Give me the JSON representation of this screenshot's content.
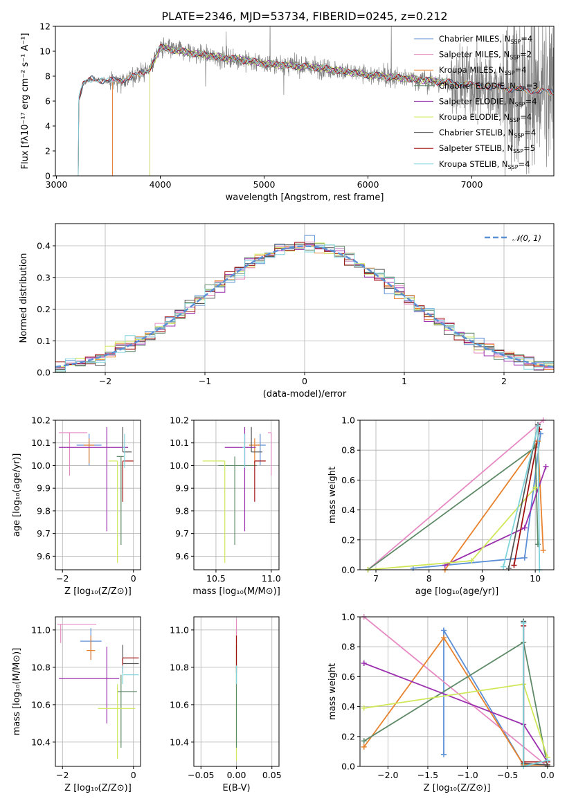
{
  "colors": {
    "Chabrier MILES": "#5b8fd6",
    "Salpeter MILES": "#e68ac3",
    "Kroupa MILES": "#e8822d",
    "Chabrier ELODIE": "#5f8a68",
    "Salpeter ELODIE": "#9b2fae",
    "Kroupa ELODIE": "#cfe85a",
    "Chabrier STELIB": "#555555",
    "Salpeter STELIB": "#a01010",
    "Kroupa STELIB": "#7fd4dc",
    "observed": "#808080",
    "normal": "#5b8fd6"
  },
  "chart_data": [
    {
      "id": "spectrum",
      "type": "line",
      "title": "PLATE=2346, MJD=53734, FIBERID=0245, z=0.212",
      "xlabel": "wavelength [Angstrom, rest frame]",
      "ylabel": "Flux [fλ10⁻¹⁷ erg cm⁻² s⁻¹ A⁻¹]",
      "xlim": [
        2990,
        7790
      ],
      "ylim": [
        0,
        12
      ],
      "xticks": [
        "3000",
        "4000",
        "5000",
        "6000",
        "7000"
      ],
      "yticks": [
        "0",
        "2",
        "4",
        "6",
        "8",
        "10",
        "12"
      ],
      "legend_position": "top-right",
      "legend": [
        {
          "name": "Chabrier MILES",
          "ssp": "4"
        },
        {
          "name": "Salpeter MILES",
          "ssp": "2"
        },
        {
          "name": "Kroupa MILES",
          "ssp": "4"
        },
        {
          "name": "Chabrier ELODIE",
          "ssp": "3"
        },
        {
          "name": "Salpeter ELODIE",
          "ssp": "4"
        },
        {
          "name": "Kroupa ELODIE",
          "ssp": "4"
        },
        {
          "name": "Chabrier STELIB",
          "ssp": "4"
        },
        {
          "name": "Salpeter STELIB",
          "ssp": "5"
        },
        {
          "name": "Kroupa STELIB",
          "ssp": "4"
        }
      ],
      "continuum": [
        [
          3210,
          0
        ],
        [
          3215,
          6.2
        ],
        [
          3260,
          7.4
        ],
        [
          3350,
          7.8
        ],
        [
          3500,
          7.6
        ],
        [
          3700,
          7.8
        ],
        [
          3900,
          8.6
        ],
        [
          4000,
          10.3
        ],
        [
          4200,
          10.0
        ],
        [
          4500,
          9.6
        ],
        [
          4800,
          9.3
        ],
        [
          5000,
          9.0
        ],
        [
          5500,
          8.7
        ],
        [
          6000,
          8.1
        ],
        [
          6500,
          7.7
        ],
        [
          7000,
          7.3
        ],
        [
          7500,
          6.9
        ],
        [
          7790,
          6.7
        ]
      ],
      "model_starts": {
        "Salpeter MILES": 3540,
        "Kroupa ELODIE": 3900,
        "Kroupa MILES": 3540,
        "Chabrier MILES": 3210,
        "Chabrier STELIB": 3210,
        "Salpeter STELIB": 3210,
        "Kroupa STELIB": 3210,
        "Chabrier ELODIE": 3900,
        "Salpeter ELODIE": 3900
      },
      "model_ends": {
        "Salpeter ELODIE": 6800,
        "Chabrier ELODIE": 6800,
        "Kroupa ELODIE": 6800
      }
    },
    {
      "id": "residuals",
      "type": "histogram",
      "xlabel": "(data-model)/error",
      "ylabel": "Normed distribution",
      "xlim": [
        -2.5,
        2.5
      ],
      "ylim": [
        0,
        0.47
      ],
      "xticks": [
        "−2",
        "−1",
        "0",
        "1",
        "2"
      ],
      "yticks": [
        "0.0",
        "0.1",
        "0.2",
        "0.3",
        "0.4"
      ],
      "normal_label": "𝒩(0, 1)",
      "bin_width": 0.1
    },
    {
      "id": "age_vs_Z",
      "type": "scatter",
      "xlabel": "Z [log₁₀(Z/Z⊙)]",
      "ylabel": "age  [log₁₀(age/yr)]",
      "xlim": [
        -2.2,
        0.2
      ],
      "ylim": [
        9.54,
        10.2
      ],
      "xticks": [
        "−2",
        "0"
      ],
      "xtick_values": [
        -2,
        0
      ],
      "yticks": [
        "9.6",
        "9.7",
        "9.8",
        "9.9",
        "10.0",
        "10.1",
        "10.2"
      ],
      "points": [
        {
          "m": "Chabrier MILES",
          "x": -1.25,
          "y": 10.09,
          "xerr": [
            0.35,
            0.35
          ],
          "yerr": [
            0.09,
            0.05
          ]
        },
        {
          "m": "Salpeter MILES",
          "x": -1.8,
          "y": 10.145,
          "xerr": [
            0.3,
            0.5
          ],
          "yerr": [
            0.19,
            0.0
          ]
        },
        {
          "m": "Kroupa MILES",
          "x": -1.25,
          "y": 10.09,
          "xerr": [
            0.15,
            0.15
          ],
          "yerr": [
            0.08,
            0.03
          ]
        },
        {
          "m": "Chabrier ELODIE",
          "x": -0.35,
          "y": 10.04,
          "xerr": [
            0.12,
            0.08
          ],
          "yerr": [
            0.39,
            0.0
          ]
        },
        {
          "m": "Salpeter ELODIE",
          "x": -0.75,
          "y": 10.08,
          "xerr": [
            1.35,
            0.6
          ],
          "yerr": [
            0.37,
            0.09
          ]
        },
        {
          "m": "Kroupa ELODIE",
          "x": -0.45,
          "y": 10.02,
          "xerr": [
            0.25,
            0.0
          ],
          "yerr": [
            0.45,
            0.0
          ]
        },
        {
          "m": "Chabrier STELIB",
          "x": -0.3,
          "y": 10.06,
          "xerr": [
            0.0,
            0.25
          ],
          "yerr": [
            0.0,
            0.11
          ]
        },
        {
          "m": "Salpeter STELIB",
          "x": -0.3,
          "y": 10.02,
          "xerr": [
            0.0,
            0.3
          ],
          "yerr": [
            0.18,
            0.0
          ]
        },
        {
          "m": "Kroupa STELIB",
          "x": -0.25,
          "y": 10.08,
          "xerr": [
            0.05,
            0.0
          ],
          "yerr": [
            0.09,
            0.06
          ]
        }
      ]
    },
    {
      "id": "age_vs_mass",
      "type": "scatter",
      "xlabel": "mass [log₁₀(M/M⊙)]",
      "ylabel": "",
      "xlim": [
        10.3,
        11.07
      ],
      "ylim": [
        9.54,
        10.2
      ],
      "xticks": [
        "10.5",
        "11.0"
      ],
      "xtick_values": [
        10.5,
        11.0
      ],
      "yticks": [
        "9.6",
        "9.7",
        "9.8",
        "9.9",
        "10.0",
        "10.1",
        "10.2"
      ],
      "points": [
        {
          "m": "Chabrier MILES",
          "x": 10.9,
          "y": 10.09,
          "xerr": [
            0.05,
            0.05
          ],
          "yerr": [
            0.09,
            0.05
          ]
        },
        {
          "m": "Salpeter MILES",
          "x": 11.0,
          "y": 10.145,
          "xerr": [
            0.03,
            0.0
          ],
          "yerr": [
            0.19,
            0.0
          ]
        },
        {
          "m": "Kroupa MILES",
          "x": 10.85,
          "y": 10.09,
          "xerr": [
            0.05,
            0.05
          ],
          "yerr": [
            0.08,
            0.03
          ]
        },
        {
          "m": "Chabrier ELODIE",
          "x": 10.67,
          "y": 10.0,
          "xerr": [
            0.15,
            0.2
          ],
          "yerr": [
            0.35,
            0.04
          ]
        },
        {
          "m": "Salpeter ELODIE",
          "x": 10.76,
          "y": 10.08,
          "xerr": [
            0.18,
            0.1
          ],
          "yerr": [
            0.37,
            0.09
          ]
        },
        {
          "m": "Kroupa ELODIE",
          "x": 10.58,
          "y": 10.02,
          "xerr": [
            0.2,
            0.0
          ],
          "yerr": [
            0.45,
            0.0
          ]
        },
        {
          "m": "Chabrier STELIB",
          "x": 10.82,
          "y": 10.06,
          "xerr": [
            0.0,
            0.1
          ],
          "yerr": [
            0.0,
            0.11
          ]
        },
        {
          "m": "Salpeter STELIB",
          "x": 10.85,
          "y": 10.02,
          "xerr": [
            0.0,
            0.1
          ],
          "yerr": [
            0.18,
            0.0
          ]
        },
        {
          "m": "Kroupa STELIB",
          "x": 10.76,
          "y": 10.08,
          "xerr": [
            0.02,
            0.0
          ],
          "yerr": [
            0.09,
            0.06
          ]
        }
      ]
    },
    {
      "id": "weight_vs_age",
      "type": "line",
      "xlabel": "age  [log₁₀(age/yr)]",
      "ylabel": "mass weight",
      "xlim": [
        6.7,
        10.35
      ],
      "ylim": [
        0,
        1
      ],
      "xticks": [
        "7",
        "8",
        "9",
        "10"
      ],
      "xtick_values": [
        7,
        8,
        9,
        10
      ],
      "yticks": [
        "0.0",
        "0.2",
        "0.4",
        "0.6",
        "0.8",
        "1.0"
      ],
      "series": [
        {
          "m": "Chabrier MILES",
          "x": [
            7.7,
            9.8,
            10.1
          ],
          "y": [
            0.01,
            0.08,
            0.91
          ]
        },
        {
          "m": "Salpeter MILES",
          "x": [
            6.85,
            10.15
          ],
          "y": [
            0.0,
            1.0
          ]
        },
        {
          "m": "Kroupa MILES",
          "x": [
            8.3,
            10.05,
            10.15
          ],
          "y": [
            0.0,
            0.86,
            0.13
          ]
        },
        {
          "m": "Chabrier ELODIE",
          "x": [
            6.85,
            10.0,
            10.05
          ],
          "y": [
            0.0,
            0.82,
            0.17
          ]
        },
        {
          "m": "Salpeter ELODIE",
          "x": [
            8.3,
            9.8,
            10.2
          ],
          "y": [
            0.03,
            0.28,
            0.69
          ]
        },
        {
          "m": "Kroupa ELODIE",
          "x": [
            6.85,
            8.8,
            10.0
          ],
          "y": [
            0.0,
            0.06,
            0.55
          ]
        },
        {
          "m": "Chabrier STELIB",
          "x": [
            9.5,
            10.05
          ],
          "y": [
            0.01,
            0.97
          ]
        },
        {
          "m": "Salpeter STELIB",
          "x": [
            9.6,
            10.08
          ],
          "y": [
            0.03,
            0.94
          ]
        },
        {
          "m": "Kroupa STELIB",
          "x": [
            9.4,
            10.05,
            10.08
          ],
          "y": [
            0.02,
            0.96,
            0.0
          ]
        }
      ]
    },
    {
      "id": "mass_vs_Z",
      "type": "scatter",
      "xlabel": "Z [log₁₀(Z/Z⊙)]",
      "ylabel": "mass [log₁₀(M/M⊙)]",
      "xlim": [
        -2.2,
        0.2
      ],
      "ylim": [
        10.27,
        11.07
      ],
      "xticks": [
        "−2",
        "0"
      ],
      "xtick_values": [
        -2,
        0
      ],
      "yticks": [
        "10.4",
        "10.6",
        "10.8",
        "11.0"
      ],
      "points": [
        {
          "m": "Chabrier MILES",
          "x": -1.2,
          "y": 10.94,
          "xerr": [
            0.3,
            0.3
          ],
          "yerr": [
            0.1,
            0.07
          ]
        },
        {
          "m": "Salpeter MILES",
          "x": -2.05,
          "y": 11.03,
          "xerr": [
            0.1,
            1.0
          ],
          "yerr": [
            0.1,
            0.0
          ]
        },
        {
          "m": "Kroupa MILES",
          "x": -1.2,
          "y": 10.89,
          "xerr": [
            0.12,
            0.12
          ],
          "yerr": [
            0.05,
            0.08
          ]
        },
        {
          "m": "Chabrier ELODIE",
          "x": -0.35,
          "y": 10.67,
          "xerr": [
            0.1,
            0.45
          ],
          "yerr": [
            0.3,
            0.09
          ]
        },
        {
          "m": "Salpeter ELODIE",
          "x": -0.75,
          "y": 10.74,
          "xerr": [
            1.35,
            0.35
          ],
          "yerr": [
            0.24,
            0.17
          ]
        },
        {
          "m": "Kroupa ELODIE",
          "x": -0.45,
          "y": 10.58,
          "xerr": [
            0.55,
            0.5
          ],
          "yerr": [
            0.27,
            0.13
          ]
        },
        {
          "m": "Chabrier STELIB",
          "x": -0.3,
          "y": 10.82,
          "xerr": [
            0.0,
            0.45
          ],
          "yerr": [
            0.0,
            0.1
          ]
        },
        {
          "m": "Salpeter STELIB",
          "x": -0.3,
          "y": 10.85,
          "xerr": [
            0.0,
            0.45
          ],
          "yerr": [
            0.08,
            0.0
          ]
        },
        {
          "m": "Kroupa STELIB",
          "x": -0.3,
          "y": 10.76,
          "xerr": [
            0.0,
            0.45
          ],
          "yerr": [
            0.05,
            0.05
          ]
        }
      ]
    },
    {
      "id": "mass_vs_EBV",
      "type": "scatter",
      "xlabel": "E(B-V)",
      "ylabel": "",
      "xlim": [
        -0.06,
        0.06
      ],
      "ylim": [
        10.27,
        11.07
      ],
      "xticks": [
        "−0.05",
        "0.00",
        "0.05"
      ],
      "xtick_values": [
        -0.05,
        0.0,
        0.05
      ],
      "yticks": [
        "10.4",
        "10.6",
        "10.8",
        "11.0"
      ],
      "points": [
        {
          "m": "Kroupa ELODIE",
          "x": 0.0,
          "y": 10.58,
          "xerr": [
            0,
            0
          ],
          "yerr": [
            0.28,
            0.42
          ]
        },
        {
          "m": "Salpeter MILES",
          "x": 0.0,
          "y": 11.03,
          "xerr": [
            0,
            0
          ],
          "yerr": [
            0.1,
            0.03
          ]
        },
        {
          "m": "Chabrier ELODIE",
          "x": 0.0,
          "y": 10.67,
          "xerr": [
            0,
            0
          ],
          "yerr": [
            0.3,
            0.25
          ]
        },
        {
          "m": "Salpeter STELIB",
          "x": 0.0,
          "y": 10.85,
          "xerr": [
            0,
            0
          ],
          "yerr": [
            0.08,
            0.12
          ]
        },
        {
          "m": "Kroupa STELIB",
          "x": 0.0,
          "y": 10.76,
          "xerr": [
            0,
            0
          ],
          "yerr": [
            0.05,
            0.05
          ]
        }
      ]
    },
    {
      "id": "weight_vs_Z",
      "type": "line",
      "xlabel": "Z [log₁₀(Z/Z⊙)]",
      "ylabel": "mass weight",
      "xlim": [
        -2.35,
        0.08
      ],
      "ylim": [
        0,
        1
      ],
      "xticks": [
        "−2.0",
        "−1.5",
        "−1.0",
        "−0.5",
        "0.0"
      ],
      "xtick_values": [
        -2.0,
        -1.5,
        -1.0,
        -0.5,
        0.0
      ],
      "yticks": [
        "0.0",
        "0.2",
        "0.4",
        "0.6",
        "0.8",
        "1.0"
      ],
      "series": [
        {
          "m": "Chabrier MILES",
          "x": [
            -1.3,
            -1.3,
            -0.3,
            -0.3
          ],
          "y": [
            0.08,
            0.91,
            0.01,
            0.96
          ]
        },
        {
          "m": "Salpeter MILES",
          "x": [
            -2.3,
            0.0
          ],
          "y": [
            1.0,
            0.0
          ]
        },
        {
          "m": "Kroupa MILES",
          "x": [
            -2.3,
            -1.3,
            -0.3,
            0.0
          ],
          "y": [
            0.13,
            0.86,
            0.01,
            0.01
          ]
        },
        {
          "m": "Chabrier ELODIE",
          "x": [
            -2.3,
            -0.3,
            0.0
          ],
          "y": [
            0.17,
            0.83,
            0.0
          ]
        },
        {
          "m": "Salpeter ELODIE",
          "x": [
            -2.3,
            -0.3,
            0.0
          ],
          "y": [
            0.69,
            0.28,
            0.03
          ]
        },
        {
          "m": "Kroupa ELODIE",
          "x": [
            -2.3,
            -0.3,
            0.0
          ],
          "y": [
            0.39,
            0.55,
            0.06
          ]
        },
        {
          "m": "Chabrier STELIB",
          "x": [
            -0.3,
            -0.3,
            0.0
          ],
          "y": [
            0.97,
            0.02,
            0.01
          ]
        },
        {
          "m": "Salpeter STELIB",
          "x": [
            -0.3,
            -0.3,
            0.0
          ],
          "y": [
            0.94,
            0.03,
            0.03
          ]
        },
        {
          "m": "Kroupa STELIB",
          "x": [
            -0.3,
            -0.3,
            0.0
          ],
          "y": [
            0.96,
            0.0,
            0.04
          ]
        }
      ]
    }
  ]
}
